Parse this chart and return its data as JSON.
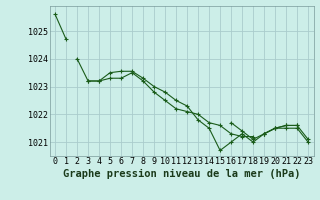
{
  "background_color": "#cceee8",
  "grid_color": "#aacccc",
  "line_color": "#1a5c1a",
  "marker_color": "#1a5c1a",
  "title": "Graphe pression niveau de la mer (hPa)",
  "title_fontsize": 7.5,
  "tick_fontsize": 6.0,
  "xlim": [
    -0.5,
    23.5
  ],
  "ylim": [
    1020.5,
    1025.9
  ],
  "yticks": [
    1021,
    1022,
    1023,
    1024,
    1025
  ],
  "xticks": [
    0,
    1,
    2,
    3,
    4,
    5,
    6,
    7,
    8,
    9,
    10,
    11,
    12,
    13,
    14,
    15,
    16,
    17,
    18,
    19,
    20,
    21,
    22,
    23
  ],
  "series": [
    [
      1025.6,
      1024.7,
      null,
      null,
      null,
      null,
      null,
      null,
      null,
      null,
      null,
      null,
      null,
      null,
      null,
      null,
      null,
      null,
      null,
      null,
      null,
      null,
      null,
      null
    ],
    [
      null,
      null,
      1024.0,
      1023.2,
      1023.2,
      1023.3,
      1023.3,
      1023.5,
      1023.2,
      1022.8,
      1022.5,
      1022.2,
      1022.1,
      1022.0,
      1021.7,
      1021.6,
      1021.3,
      1021.2,
      1021.2,
      null,
      null,
      null,
      null,
      null
    ],
    [
      null,
      null,
      null,
      1023.2,
      1023.2,
      1023.5,
      1023.55,
      1023.55,
      1023.3,
      1023.0,
      1022.8,
      1022.5,
      1022.3,
      1021.8,
      1021.5,
      1020.7,
      1021.0,
      1021.3,
      1021.0,
      1021.3,
      1021.5,
      1021.5,
      1021.5,
      1021.0
    ],
    [
      null,
      null,
      null,
      null,
      null,
      null,
      null,
      null,
      null,
      null,
      null,
      null,
      null,
      null,
      null,
      null,
      1021.7,
      1021.4,
      1021.1,
      1021.3,
      1021.5,
      1021.6,
      1021.6,
      null
    ],
    [
      null,
      null,
      null,
      null,
      null,
      null,
      null,
      null,
      null,
      null,
      null,
      null,
      null,
      null,
      null,
      null,
      null,
      null,
      null,
      1021.3,
      1021.5,
      1021.6,
      1021.6,
      1021.1
    ]
  ]
}
